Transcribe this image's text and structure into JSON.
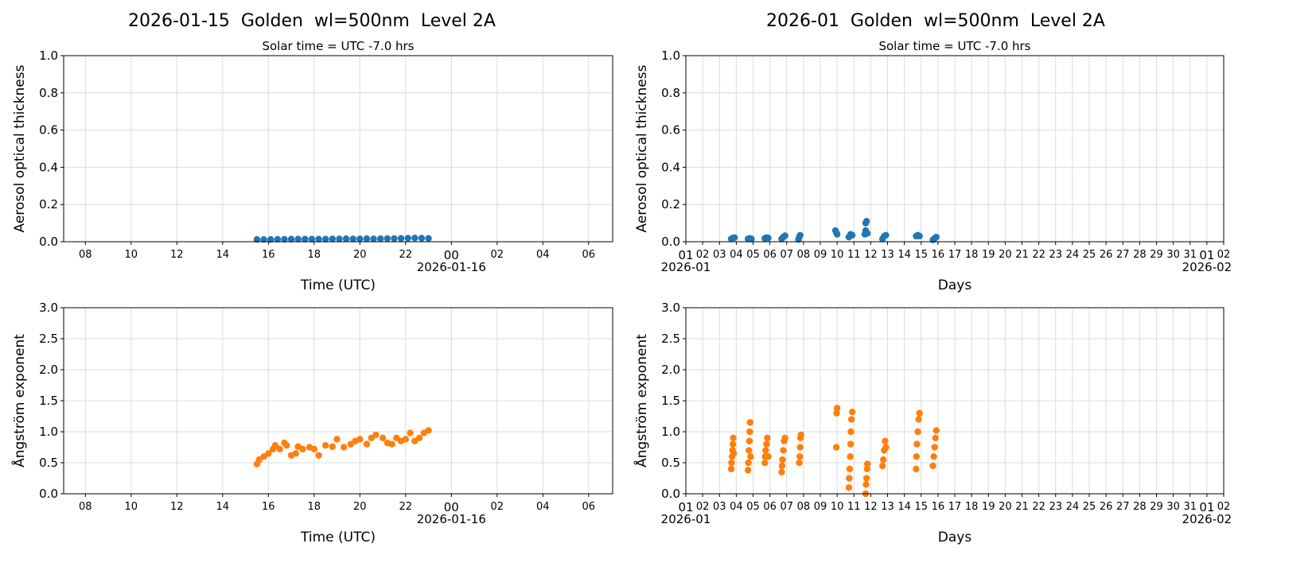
{
  "chart_data": [
    {
      "type": "scatter",
      "title": "2026-01-15  Golden  wl=500nm  Level 2A",
      "subtitle": "Solar time = UTC -7.0 hrs",
      "xlabel": "Time (UTC)",
      "ylabel": "Aerosol optical thickness",
      "xlim": [
        "2026-01-15 07:03",
        "2026-01-16 07:03"
      ],
      "ylim": [
        0,
        1.0
      ],
      "xticks": [
        "08",
        "10",
        "12",
        "14",
        "16",
        "18",
        "20",
        "22",
        "00",
        "02",
        "04",
        "06"
      ],
      "xtick_date_label": "2026-01-16",
      "yticks": [
        "0.0",
        "0.2",
        "0.4",
        "0.6",
        "0.8",
        "1.0"
      ],
      "grid": true,
      "color": "#1f77b4",
      "series": [
        {
          "x_hours_utc": [
            15.5,
            15.8,
            16.1,
            16.4,
            16.7,
            17.0,
            17.3,
            17.6,
            17.9,
            18.2,
            18.5,
            18.8,
            19.1,
            19.4,
            19.7,
            20.0,
            20.3,
            20.6,
            20.9,
            21.2,
            21.5,
            21.8,
            22.1,
            22.4,
            22.7,
            23.0
          ],
          "y": [
            0.012,
            0.012,
            0.012,
            0.013,
            0.013,
            0.014,
            0.014,
            0.014,
            0.014,
            0.014,
            0.014,
            0.015,
            0.015,
            0.016,
            0.015,
            0.015,
            0.016,
            0.015,
            0.016,
            0.017,
            0.017,
            0.018,
            0.019,
            0.02,
            0.019,
            0.018
          ]
        }
      ]
    },
    {
      "type": "scatter",
      "title": "2026-01  Golden  wl=500nm  Level 2A",
      "subtitle": "Solar time = UTC -7.0 hrs",
      "xlabel": "Days",
      "ylabel": "Aerosol optical thickness",
      "xlim": [
        "2026-01-01",
        "2026-02-02"
      ],
      "ylim": [
        0,
        1.0
      ],
      "xticks": [
        "01",
        "02",
        "03",
        "04",
        "05",
        "06",
        "07",
        "08",
        "09",
        "10",
        "11",
        "12",
        "13",
        "14",
        "15",
        "16",
        "17",
        "18",
        "19",
        "20",
        "21",
        "22",
        "23",
        "24",
        "25",
        "26",
        "27",
        "28",
        "29",
        "30",
        "31",
        "01",
        "02"
      ],
      "xtick_month_labels": [
        "2026-01",
        "2026-02"
      ],
      "yticks": [
        "0.0",
        "0.2",
        "0.4",
        "0.6",
        "0.8",
        "1.0"
      ],
      "grid": true,
      "color": "#1f77b4",
      "series": [
        {
          "x_day": [
            3.7,
            3.8,
            3.9,
            4.7,
            4.8,
            4.9,
            5.7,
            5.8,
            5.9,
            6.7,
            6.8,
            6.9,
            7.7,
            7.75,
            7.8,
            9.9,
            9.95,
            10.0,
            10.7,
            10.8,
            10.9,
            11.65,
            11.7,
            11.7,
            11.75,
            11.8,
            12.7,
            12.8,
            12.9,
            14.7,
            14.8,
            14.9,
            15.7,
            15.8,
            15.9
          ],
          "y": [
            0.015,
            0.02,
            0.022,
            0.015,
            0.018,
            0.015,
            0.018,
            0.022,
            0.02,
            0.015,
            0.025,
            0.032,
            0.012,
            0.025,
            0.035,
            0.06,
            0.05,
            0.04,
            0.025,
            0.04,
            0.035,
            0.04,
            0.06,
            0.1,
            0.11,
            0.045,
            0.015,
            0.03,
            0.035,
            0.03,
            0.035,
            0.03,
            0.01,
            0.018,
            0.025
          ]
        }
      ]
    },
    {
      "type": "scatter",
      "title": "",
      "xlabel": "Time (UTC)",
      "ylabel": "Ångström exponent",
      "xlim": [
        "2026-01-15 07:03",
        "2026-01-16 07:03"
      ],
      "ylim": [
        0,
        3.0
      ],
      "xticks": [
        "08",
        "10",
        "12",
        "14",
        "16",
        "18",
        "20",
        "22",
        "00",
        "02",
        "04",
        "06"
      ],
      "xtick_date_label": "2026-01-16",
      "yticks": [
        "0.0",
        "0.5",
        "1.0",
        "1.5",
        "2.0",
        "2.5",
        "3.0"
      ],
      "grid": true,
      "color": "#ff7f0e",
      "series": [
        {
          "x_hours_utc": [
            15.5,
            15.6,
            15.8,
            16.0,
            16.2,
            16.3,
            16.5,
            16.7,
            16.8,
            17.0,
            17.2,
            17.3,
            17.5,
            17.8,
            18.0,
            18.2,
            18.5,
            18.8,
            19.0,
            19.3,
            19.6,
            19.8,
            20.0,
            20.3,
            20.5,
            20.7,
            21.0,
            21.2,
            21.4,
            21.6,
            21.8,
            22.0,
            22.2,
            22.4,
            22.6,
            22.8,
            23.0
          ],
          "y": [
            0.48,
            0.55,
            0.6,
            0.65,
            0.72,
            0.78,
            0.72,
            0.82,
            0.78,
            0.62,
            0.65,
            0.76,
            0.72,
            0.75,
            0.72,
            0.62,
            0.78,
            0.76,
            0.88,
            0.75,
            0.8,
            0.85,
            0.88,
            0.8,
            0.9,
            0.95,
            0.9,
            0.82,
            0.8,
            0.9,
            0.85,
            0.88,
            0.98,
            0.85,
            0.9,
            0.98,
            1.02
          ]
        }
      ]
    },
    {
      "type": "scatter",
      "title": "",
      "xlabel": "Days",
      "ylabel": "Ångström exponent",
      "xlim": [
        "2026-01-01",
        "2026-02-02"
      ],
      "ylim": [
        0,
        3.0
      ],
      "xticks": [
        "01",
        "02",
        "03",
        "04",
        "05",
        "06",
        "07",
        "08",
        "09",
        "10",
        "11",
        "12",
        "13",
        "14",
        "15",
        "16",
        "17",
        "18",
        "19",
        "20",
        "21",
        "22",
        "23",
        "24",
        "25",
        "26",
        "27",
        "28",
        "29",
        "30",
        "31",
        "01",
        "02"
      ],
      "xtick_month_labels": [
        "2026-01",
        "2026-02"
      ],
      "yticks": [
        "0.0",
        "0.5",
        "1.0",
        "1.5",
        "2.0",
        "2.5",
        "3.0"
      ],
      "grid": true,
      "color": "#ff7f0e",
      "series": [
        {
          "x_day": [
            3.7,
            3.72,
            3.75,
            3.78,
            3.8,
            3.82,
            3.85,
            4.7,
            4.72,
            4.75,
            4.78,
            4.8,
            4.82,
            4.85,
            5.7,
            5.72,
            5.75,
            5.8,
            5.85,
            5.9,
            6.7,
            6.72,
            6.75,
            6.8,
            6.85,
            6.9,
            7.75,
            7.78,
            7.8,
            7.82,
            7.85,
            9.95,
            9.97,
            10.0,
            10.7,
            10.72,
            10.75,
            10.78,
            10.8,
            10.82,
            10.85,
            10.9,
            11.7,
            11.72,
            11.75,
            11.78,
            11.8,
            12.7,
            12.75,
            12.8,
            12.85,
            12.9,
            14.7,
            14.72,
            14.75,
            14.8,
            14.85,
            14.9,
            15.7,
            15.75,
            15.8,
            15.85,
            15.9
          ],
          "y": [
            0.4,
            0.5,
            0.6,
            0.7,
            0.8,
            0.9,
            0.65,
            0.38,
            0.5,
            0.7,
            0.85,
            1.0,
            1.15,
            0.6,
            0.5,
            0.6,
            0.7,
            0.8,
            0.9,
            0.6,
            0.35,
            0.45,
            0.55,
            0.7,
            0.85,
            0.9,
            0.5,
            0.6,
            0.75,
            0.9,
            0.95,
            0.75,
            1.3,
            1.38,
            0.1,
            0.25,
            0.4,
            0.6,
            0.8,
            1.0,
            1.2,
            1.32,
            0.0,
            0.15,
            0.25,
            0.4,
            0.48,
            0.45,
            0.55,
            0.7,
            0.85,
            0.75,
            0.4,
            0.6,
            0.8,
            1.0,
            1.2,
            1.3,
            0.45,
            0.6,
            0.75,
            0.9,
            1.02
          ]
        }
      ]
    }
  ]
}
